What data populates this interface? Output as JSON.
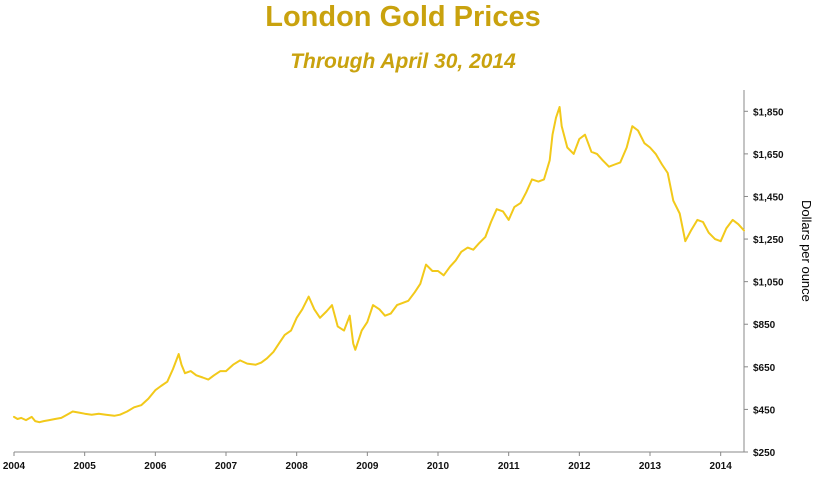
{
  "chart_data": {
    "type": "line",
    "title": "London Gold Prices",
    "subtitle": "Through April 30, 2014",
    "xlabel": "",
    "ylabel": "Dollars per ounce",
    "xlim": [
      2004.0,
      2014.33
    ],
    "ylim": [
      250,
      1950
    ],
    "x_ticks": [
      2004,
      2005,
      2006,
      2007,
      2008,
      2009,
      2010,
      2011,
      2012,
      2013,
      2014
    ],
    "x_tick_labels": [
      "2004",
      "2005",
      "2006",
      "2007",
      "2008",
      "2009",
      "2010",
      "2011",
      "2012",
      "2013",
      "2014"
    ],
    "y_ticks": [
      250,
      450,
      650,
      850,
      1050,
      1250,
      1450,
      1650,
      1850
    ],
    "y_tick_labels": [
      "$250",
      "$450",
      "$650",
      "$850",
      "$1,050",
      "$1,250",
      "$1,450",
      "$1,650",
      "$1,850"
    ],
    "y_axis_side": "right",
    "grid": false,
    "line_color": "#F2C91A",
    "title_color": "#C9A20E",
    "series": [
      {
        "x": [
          2004.0,
          2004.05,
          2004.1,
          2004.17,
          2004.25,
          2004.3,
          2004.36,
          2004.42,
          2004.5,
          2004.58,
          2004.67,
          2004.75,
          2004.83,
          2004.92,
          2005.0,
          2005.1,
          2005.2,
          2005.3,
          2005.42,
          2005.5,
          2005.6,
          2005.7,
          2005.8,
          2005.9,
          2006.0,
          2006.08,
          2006.17,
          2006.25,
          2006.33,
          2006.37,
          2006.42,
          2006.5,
          2006.58,
          2006.67,
          2006.75,
          2006.83,
          2006.92,
          2007.0,
          2007.1,
          2007.2,
          2007.3,
          2007.42,
          2007.5,
          2007.58,
          2007.67,
          2007.75,
          2007.83,
          2007.92,
          2008.0,
          2008.08,
          2008.17,
          2008.25,
          2008.33,
          2008.42,
          2008.5,
          2008.58,
          2008.67,
          2008.75,
          2008.8,
          2008.83,
          2008.88,
          2008.92,
          2009.0,
          2009.08,
          2009.17,
          2009.25,
          2009.33,
          2009.42,
          2009.5,
          2009.58,
          2009.67,
          2009.75,
          2009.83,
          2009.92,
          2010.0,
          2010.08,
          2010.17,
          2010.25,
          2010.33,
          2010.42,
          2010.5,
          2010.58,
          2010.67,
          2010.75,
          2010.83,
          2010.92,
          2011.0,
          2011.08,
          2011.17,
          2011.25,
          2011.33,
          2011.42,
          2011.5,
          2011.58,
          2011.62,
          2011.67,
          2011.72,
          2011.75,
          2011.83,
          2011.92,
          2012.0,
          2012.08,
          2012.17,
          2012.25,
          2012.33,
          2012.42,
          2012.5,
          2012.58,
          2012.67,
          2012.75,
          2012.83,
          2012.92,
          2013.0,
          2013.08,
          2013.17,
          2013.25,
          2013.33,
          2013.42,
          2013.5,
          2013.58,
          2013.67,
          2013.75,
          2013.83,
          2013.92,
          2014.0,
          2014.08,
          2014.17,
          2014.25,
          2014.33
        ],
        "y": [
          415,
          405,
          410,
          400,
          415,
          395,
          390,
          395,
          400,
          405,
          410,
          425,
          440,
          435,
          430,
          425,
          430,
          425,
          420,
          425,
          440,
          460,
          470,
          500,
          540,
          560,
          580,
          640,
          710,
          660,
          620,
          630,
          610,
          600,
          590,
          610,
          630,
          630,
          660,
          680,
          665,
          660,
          670,
          690,
          720,
          760,
          800,
          820,
          880,
          920,
          980,
          920,
          880,
          910,
          940,
          840,
          820,
          890,
          760,
          730,
          780,
          820,
          860,
          940,
          920,
          890,
          900,
          940,
          950,
          960,
          1000,
          1040,
          1130,
          1100,
          1100,
          1080,
          1120,
          1150,
          1190,
          1210,
          1200,
          1230,
          1260,
          1330,
          1390,
          1380,
          1340,
          1400,
          1420,
          1470,
          1530,
          1520,
          1530,
          1620,
          1740,
          1820,
          1870,
          1780,
          1680,
          1650,
          1720,
          1740,
          1660,
          1650,
          1620,
          1590,
          1600,
          1610,
          1680,
          1780,
          1760,
          1700,
          1680,
          1650,
          1600,
          1560,
          1430,
          1370,
          1240,
          1290,
          1340,
          1330,
          1280,
          1250,
          1240,
          1300,
          1340,
          1320,
          1290
        ]
      }
    ]
  }
}
